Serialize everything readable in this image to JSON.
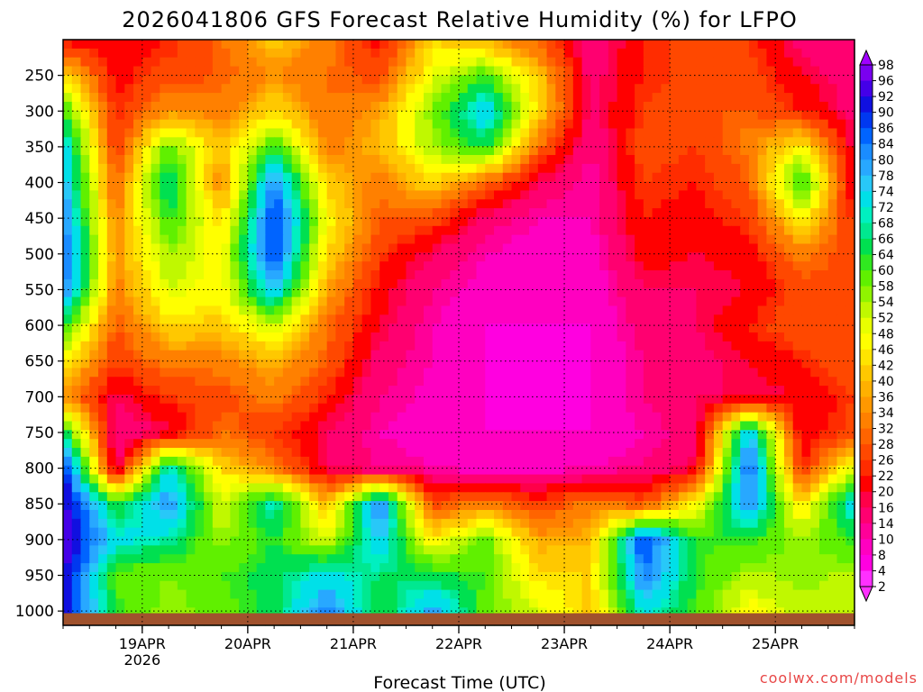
{
  "chart_data": {
    "type": "heatmap",
    "title": "2026041806 GFS Forecast Relative Humidity (%) for LFPO",
    "xlabel": "Forecast Time (UTC)",
    "ylabel": "",
    "x_ticks": [
      "19APR",
      "20APR",
      "21APR",
      "22APR",
      "23APR",
      "24APR",
      "25APR"
    ],
    "x_year_label": "2026",
    "x_range": [
      "2026-04-18 06:00",
      "2026-04-25 18:00"
    ],
    "y_ticks": [
      250,
      300,
      350,
      400,
      450,
      500,
      550,
      600,
      650,
      700,
      750,
      800,
      850,
      900,
      950,
      1000
    ],
    "y_range": [
      200,
      1020
    ],
    "y_axis_reversed": true,
    "colorbar": {
      "labels": [
        98,
        96,
        92,
        90,
        86,
        84,
        80,
        78,
        74,
        72,
        68,
        66,
        64,
        60,
        58,
        54,
        52,
        48,
        46,
        42,
        40,
        36,
        34,
        32,
        28,
        26,
        22,
        20,
        16,
        14,
        10,
        8,
        4,
        2
      ],
      "colors": [
        "#a000ff",
        "#7a00f0",
        "#4400e8",
        "#1010e0",
        "#0038f0",
        "#0064ff",
        "#1a8cff",
        "#28a8ff",
        "#28c8f8",
        "#00e0e8",
        "#00f0c0",
        "#00e890",
        "#00e050",
        "#30e820",
        "#60f000",
        "#90f400",
        "#c0f800",
        "#e8ff00",
        "#ffff00",
        "#ffe400",
        "#ffc800",
        "#ffb000",
        "#ff9800",
        "#ff8000",
        "#ff6400",
        "#ff4800",
        "#ff2c00",
        "#ff0000",
        "#ff0048",
        "#ff0070",
        "#ff0098",
        "#ff00c0",
        "#ff00e0",
        "#ff30ff"
      ],
      "extends": "both"
    },
    "grid": true,
    "ground_color": "#a0522d"
  },
  "credit": "coolwx.com/models",
  "colors": {
    "credit": "#e84848",
    "frame": "#000000",
    "grid": "#000000",
    "ground": "#a0522d"
  },
  "field": {
    "tcols": [
      0,
      0.5,
      1,
      1.5,
      2,
      2.5,
      3,
      3.5,
      4,
      4.5,
      5,
      5.5,
      6,
      6.5,
      7,
      7.5
    ],
    "levels": [
      200,
      250,
      300,
      350,
      400,
      450,
      500,
      550,
      600,
      650,
      700,
      750,
      800,
      850,
      900,
      950,
      1000
    ],
    "rh": [
      [
        18,
        16,
        20,
        28,
        38,
        30,
        18,
        40,
        34,
        26,
        10,
        20,
        24,
        22,
        12,
        10
      ],
      [
        40,
        18,
        24,
        26,
        32,
        28,
        24,
        46,
        58,
        38,
        12,
        20,
        24,
        24,
        16,
        12
      ],
      [
        60,
        20,
        32,
        30,
        40,
        28,
        34,
        54,
        74,
        40,
        12,
        22,
        26,
        26,
        20,
        12
      ],
      [
        72,
        22,
        56,
        36,
        60,
        30,
        36,
        52,
        62,
        28,
        10,
        24,
        22,
        30,
        44,
        14
      ],
      [
        76,
        26,
        66,
        30,
        80,
        38,
        30,
        40,
        28,
        14,
        8,
        22,
        20,
        26,
        62,
        14
      ],
      [
        80,
        30,
        60,
        40,
        86,
        44,
        26,
        24,
        12,
        8,
        8,
        20,
        18,
        22,
        44,
        20
      ],
      [
        84,
        32,
        52,
        44,
        86,
        40,
        22,
        14,
        8,
        6,
        6,
        18,
        16,
        18,
        30,
        22
      ],
      [
        82,
        30,
        48,
        44,
        74,
        34,
        18,
        10,
        6,
        5,
        5,
        14,
        14,
        16,
        24,
        26
      ],
      [
        60,
        26,
        40,
        38,
        50,
        28,
        16,
        8,
        4,
        4,
        4,
        12,
        14,
        20,
        26,
        24
      ],
      [
        44,
        22,
        30,
        30,
        36,
        26,
        12,
        8,
        4,
        4,
        4,
        10,
        12,
        16,
        20,
        26
      ],
      [
        32,
        14,
        22,
        24,
        30,
        20,
        10,
        7,
        4,
        4,
        4,
        10,
        14,
        14,
        16,
        22
      ],
      [
        64,
        10,
        14,
        28,
        22,
        14,
        8,
        6,
        4,
        4,
        4,
        8,
        12,
        74,
        16,
        24
      ],
      [
        90,
        12,
        70,
        40,
        30,
        14,
        10,
        8,
        6,
        6,
        8,
        10,
        16,
        84,
        20,
        48
      ],
      [
        92,
        60,
        78,
        48,
        68,
        36,
        80,
        24,
        30,
        22,
        30,
        24,
        44,
        78,
        40,
        72
      ],
      [
        94,
        70,
        66,
        52,
        60,
        48,
        74,
        42,
        56,
        34,
        36,
        86,
        58,
        60,
        52,
        60
      ],
      [
        92,
        56,
        54,
        58,
        62,
        70,
        64,
        62,
        58,
        40,
        40,
        80,
        60,
        50,
        54,
        50
      ],
      [
        90,
        60,
        52,
        56,
        62,
        80,
        60,
        76,
        56,
        48,
        38,
        70,
        58,
        44,
        50,
        52
      ]
    ]
  }
}
